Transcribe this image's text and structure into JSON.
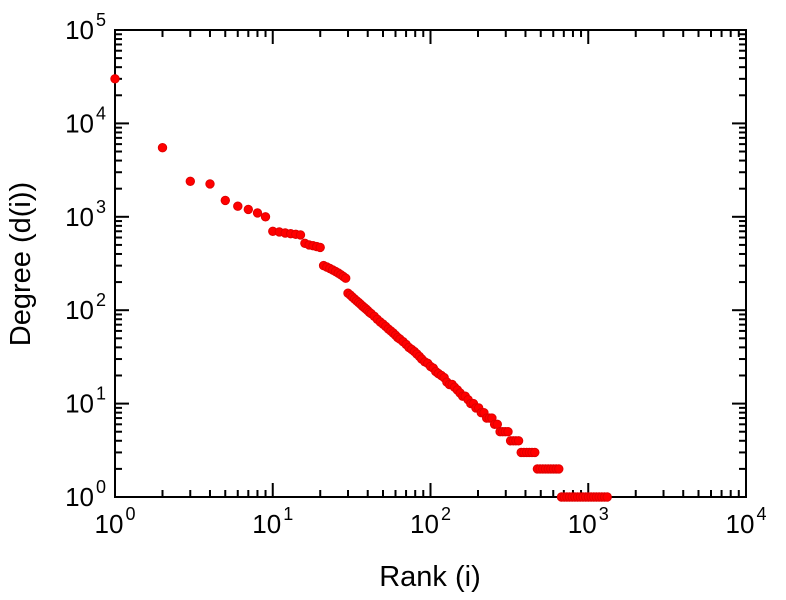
{
  "figure": {
    "background": "#ffffff",
    "frame_color": "#000000"
  },
  "chart_data": {
    "type": "scatter",
    "title": "",
    "xlabel": "Rank (i)",
    "ylabel": "Degree (d(i))",
    "xscale": "log",
    "yscale": "log",
    "xlim": [
      1,
      10000
    ],
    "ylim": [
      1,
      100000
    ],
    "x_tick_exponents": [
      0,
      1,
      2,
      3,
      4
    ],
    "y_tick_exponents": [
      0,
      1,
      2,
      3,
      4,
      5
    ],
    "tick_base": "10",
    "grid": false,
    "legend": null,
    "marker": {
      "shape": "circle",
      "color": "#ff0000",
      "edge_color": "#e00000",
      "radius_px": 4.2
    },
    "series_name": "degree-vs-rank",
    "points": [
      [
        1,
        30000
      ],
      [
        2,
        5500
      ],
      [
        3,
        2400
      ],
      [
        4,
        2250
      ],
      [
        5,
        1500
      ],
      [
        6,
        1300
      ],
      [
        7,
        1200
      ],
      [
        8,
        1100
      ],
      [
        9,
        1000
      ],
      [
        10,
        700
      ],
      [
        11,
        690
      ],
      [
        12,
        670
      ],
      [
        13,
        660
      ],
      [
        14,
        650
      ],
      [
        15,
        640
      ],
      [
        16,
        520
      ],
      [
        17,
        500
      ],
      [
        18,
        490
      ],
      [
        19,
        480
      ],
      [
        20,
        470
      ],
      [
        21,
        300
      ],
      [
        22,
        290
      ],
      [
        23,
        280
      ],
      [
        24,
        270
      ],
      [
        25,
        260
      ],
      [
        26,
        250
      ],
      [
        27,
        240
      ],
      [
        28,
        230
      ],
      [
        29,
        220
      ],
      [
        30,
        152
      ],
      [
        31,
        145
      ],
      [
        32,
        138
      ],
      [
        33,
        132
      ],
      [
        34,
        126
      ],
      [
        35,
        121
      ],
      [
        36,
        116
      ],
      [
        37,
        111
      ],
      [
        38,
        107
      ],
      [
        39,
        103
      ],
      [
        40,
        99
      ],
      [
        41,
        95
      ],
      [
        42,
        92
      ],
      [
        44,
        86
      ],
      [
        46,
        80
      ],
      [
        48,
        75
      ],
      [
        50,
        71
      ],
      [
        52,
        67
      ],
      [
        54,
        63
      ],
      [
        56,
        60
      ],
      [
        58,
        57
      ],
      [
        60,
        54
      ],
      [
        62,
        51
      ],
      [
        64,
        49
      ],
      [
        67,
        46
      ],
      [
        70,
        43
      ],
      [
        73,
        40
      ],
      [
        76,
        38
      ],
      [
        79,
        36
      ],
      [
        82,
        34
      ],
      [
        85,
        32
      ],
      [
        88,
        30
      ],
      [
        92,
        28
      ],
      [
        96,
        27
      ],
      [
        100,
        25
      ],
      [
        104,
        24
      ],
      [
        108,
        22
      ],
      [
        112,
        21
      ],
      [
        117,
        20
      ],
      [
        122,
        19
      ],
      [
        127,
        17
      ],
      [
        132,
        16
      ],
      [
        137,
        16
      ],
      [
        142,
        15
      ],
      [
        148,
        14
      ],
      [
        154,
        13
      ],
      [
        160,
        12
      ],
      [
        166,
        12
      ],
      [
        173,
        11
      ],
      [
        180,
        10
      ],
      [
        187,
        10
      ],
      [
        194,
        9
      ],
      [
        202,
        9
      ],
      [
        210,
        8
      ],
      [
        218,
        8
      ],
      [
        227,
        7
      ],
      [
        236,
        7
      ],
      [
        245,
        7
      ],
      [
        255,
        6
      ],
      [
        265,
        6
      ],
      [
        276,
        5
      ],
      [
        287,
        5
      ],
      [
        298,
        5
      ],
      [
        310,
        5
      ],
      [
        322,
        4
      ],
      [
        335,
        4
      ],
      [
        348,
        4
      ],
      [
        362,
        4
      ],
      [
        376,
        3
      ],
      [
        391,
        3
      ],
      [
        407,
        3
      ],
      [
        423,
        3
      ],
      [
        440,
        3
      ],
      [
        458,
        3
      ],
      [
        476,
        2
      ],
      [
        495,
        2
      ],
      [
        515,
        2
      ],
      [
        536,
        2
      ],
      [
        557,
        2
      ],
      [
        579,
        2
      ],
      [
        602,
        2
      ],
      [
        626,
        2
      ],
      [
        651,
        2
      ],
      [
        677,
        1
      ],
      [
        704,
        1
      ],
      [
        732,
        1
      ],
      [
        761,
        1
      ],
      [
        791,
        1
      ],
      [
        823,
        1
      ],
      [
        856,
        1
      ],
      [
        890,
        1
      ],
      [
        926,
        1
      ],
      [
        963,
        1
      ],
      [
        1002,
        1
      ],
      [
        1042,
        1
      ],
      [
        1084,
        1
      ],
      [
        1127,
        1
      ],
      [
        1172,
        1
      ],
      [
        1219,
        1
      ],
      [
        1268,
        1
      ],
      [
        1319,
        1
      ]
    ]
  }
}
